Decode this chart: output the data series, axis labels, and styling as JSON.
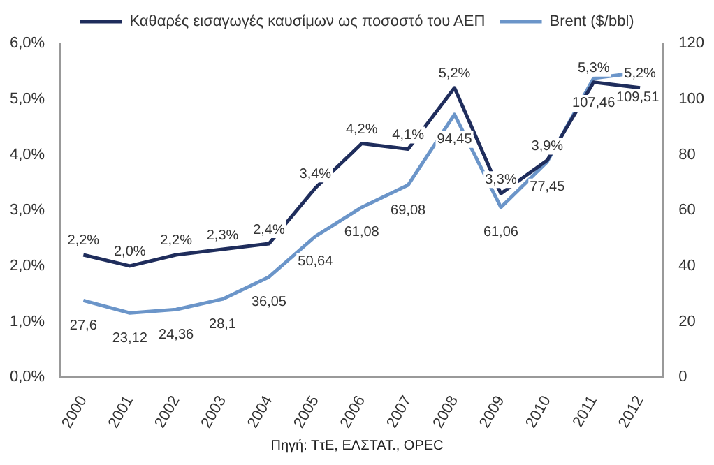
{
  "chart_data": {
    "type": "line",
    "categories": [
      "2000",
      "2001",
      "2002",
      "2003",
      "2004",
      "2005",
      "2006",
      "2007",
      "2008",
      "2009",
      "2010",
      "2011",
      "2012"
    ],
    "series": [
      {
        "name": "Καθαρές εισαγωγές καυσίμων ως ποσοστό του ΑΕΠ",
        "color": "#1f2d5c",
        "values": [
          2.2,
          2.0,
          2.2,
          2.3,
          2.4,
          3.4,
          4.2,
          4.1,
          5.2,
          3.3,
          3.9,
          5.3,
          5.2
        ],
        "value_labels": [
          "2,2%",
          "2,0%",
          "2,2%",
          "2,3%",
          "2,4%",
          "3,4%",
          "4,2%",
          "4,1%",
          "5,2%",
          "3,3%",
          "3,9%",
          "5,3%",
          "5,2%"
        ]
      },
      {
        "name": "Brent ($/bbl)",
        "color": "#6b95c9",
        "axis": "y2",
        "values": [
          27.6,
          23.12,
          24.36,
          28.1,
          36.05,
          50.64,
          61.08,
          69.08,
          94.45,
          61.06,
          77.45,
          107.46,
          109.51
        ],
        "value_labels": [
          "27,6",
          "23,12",
          "24,36",
          "28,1",
          "36,05",
          "50,64",
          "61,08",
          "69,08",
          "94,45",
          "61,06",
          "77,45",
          "107,46",
          "109,51"
        ]
      }
    ],
    "ylim": [
      0,
      6
    ],
    "yticks": [
      {
        "value": 0,
        "label": "0,0%"
      },
      {
        "value": 1,
        "label": "1,0%"
      },
      {
        "value": 2,
        "label": "2,0%"
      },
      {
        "value": 3,
        "label": "3,0%"
      },
      {
        "value": 4,
        "label": "4,0%"
      },
      {
        "value": 5,
        "label": "5,0%"
      },
      {
        "value": 6,
        "label": "6,0%"
      }
    ],
    "y2lim": [
      0,
      120
    ],
    "y2ticks": [
      0,
      20,
      40,
      60,
      80,
      100,
      120
    ],
    "legend": "top",
    "grid": false,
    "marker": "none",
    "line_style": "solid",
    "annotations": [
      "Πηγή: ΤτΕ, ΕΛΣΤΑΤ., OPEC"
    ]
  }
}
